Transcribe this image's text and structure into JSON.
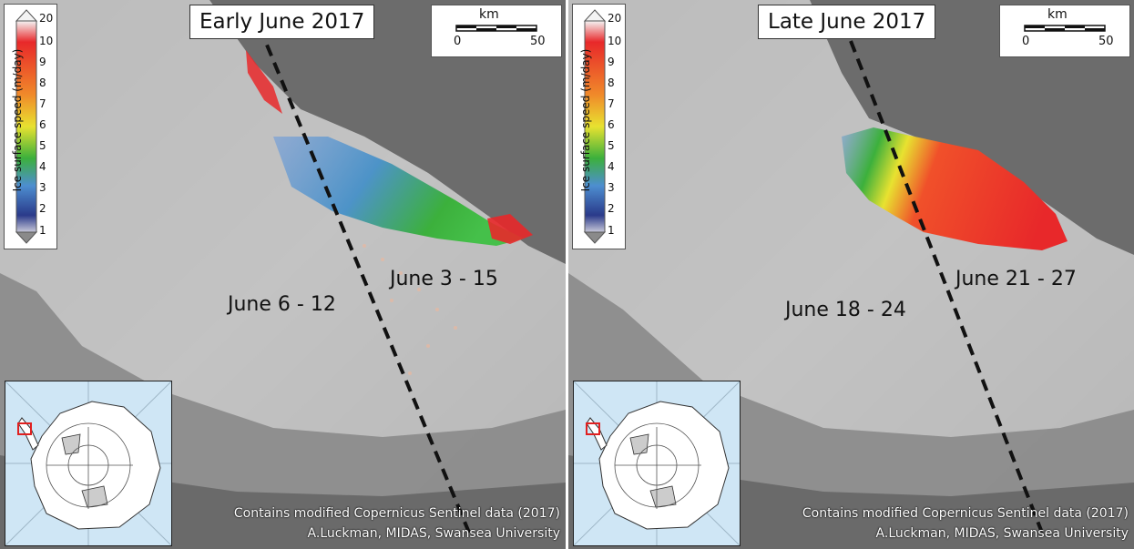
{
  "colors": {
    "slow": "#2a3a8a",
    "mid": "#3cb03c",
    "yellow": "#e8e230",
    "fast": "#e8282a",
    "very_fast": "#f4f4f4",
    "locator_box": "#e02020",
    "ocean_inset": "#cfe6f5"
  },
  "legend": {
    "title": "Ice surface speed (m/day)",
    "ticks": [
      "20",
      "10",
      "9",
      "8",
      "7",
      "6",
      "5",
      "4",
      "3",
      "2",
      "1"
    ]
  },
  "scalebar": {
    "unit": "km",
    "start": "0",
    "end": "50"
  },
  "panels": [
    {
      "title": "Early June 2017",
      "label_left": "June 6 - 12",
      "label_right": "June 3 - 15",
      "credit_line1": "Contains modified Copernicus Sentinel data (2017)",
      "credit_line2": "A.Luckman, MIDAS, Swansea University"
    },
    {
      "title": "Late June 2017",
      "label_left": "June 18 - 24",
      "label_right": "June 21 - 27",
      "credit_line1": "Contains modified Copernicus Sentinel data (2017)",
      "credit_line2": "A.Luckman, MIDAS, Swansea University"
    }
  ],
  "icons": [
    "speed-colorbar-icon",
    "scale-bar-icon",
    "antarctica-locator-icon",
    "swath-boundary-line-icon"
  ]
}
